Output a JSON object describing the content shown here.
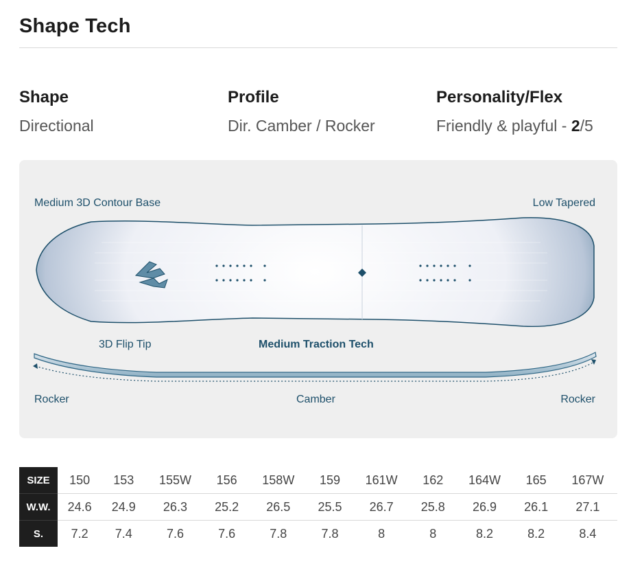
{
  "section_title": "Shape Tech",
  "specs": [
    {
      "label": "Shape",
      "value": "Directional"
    },
    {
      "label": "Profile",
      "value": "Dir. Camber / Rocker"
    },
    {
      "label": "Personality/Flex",
      "value_text": "Friendly & playful - ",
      "flex_rating": "2",
      "flex_max": "/5"
    }
  ],
  "board_diagram": {
    "labels": {
      "base": "Medium 3D Contour Base",
      "taper": "Low Tapered",
      "tip": "3D Flip Tip",
      "edge": "Medium Traction Tech",
      "rocker_left": "Rocker",
      "camber": "Camber",
      "rocker_right": "Rocker"
    },
    "colors": {
      "panel_bg": "#efefef",
      "board_dark": "#1d4f6a",
      "label": "#1d4f6a"
    }
  },
  "size_table": {
    "rows": [
      {
        "header": "SIZE",
        "values": [
          "150",
          "153",
          "155W",
          "156",
          "158W",
          "159",
          "161W",
          "162",
          "164W",
          "165",
          "167W"
        ]
      },
      {
        "header": "W.W.",
        "values": [
          "24.6",
          "24.9",
          "26.3",
          "25.2",
          "26.5",
          "25.5",
          "26.7",
          "25.8",
          "26.9",
          "26.1",
          "27.1"
        ]
      },
      {
        "header": "S.",
        "values": [
          "7.2",
          "7.4",
          "7.6",
          "7.6",
          "7.8",
          "7.8",
          "8",
          "8",
          "8.2",
          "8.2",
          "8.4"
        ]
      }
    ]
  }
}
